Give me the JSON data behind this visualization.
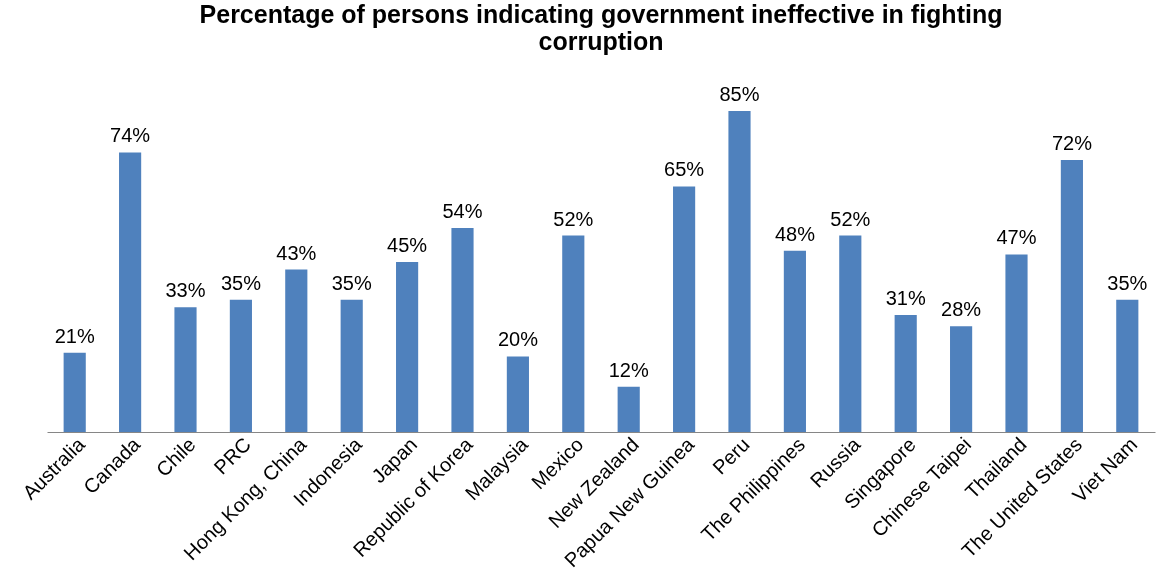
{
  "chart_data": {
    "type": "bar",
    "title": "Percentage of persons indicating government ineffective in fighting corruption",
    "categories": [
      "Australia",
      "Canada",
      "Chile",
      "PRC",
      "Hong Kong, China",
      "Indonesia",
      "Japan",
      "Republic of Korea",
      "Malaysia",
      "Mexico",
      "New Zealand",
      "Papua New Guinea",
      "Peru",
      "The Philippines",
      "Russia",
      "Singapore",
      "Chinese Taipei",
      "Thailand",
      "The United States",
      "Viet Nam"
    ],
    "values": [
      21,
      74,
      33,
      35,
      43,
      35,
      45,
      54,
      20,
      52,
      12,
      65,
      85,
      48,
      52,
      31,
      28,
      47,
      72,
      35
    ],
    "value_labels": [
      "21%",
      "74%",
      "33%",
      "35%",
      "43%",
      "35%",
      "45%",
      "54%",
      "20%",
      "52%",
      "12%",
      "65%",
      "85%",
      "48%",
      "52%",
      "31%",
      "28%",
      "47%",
      "72%",
      "35%"
    ],
    "color": "#4f81bd",
    "grid": false,
    "tick_labels": "x"
  }
}
